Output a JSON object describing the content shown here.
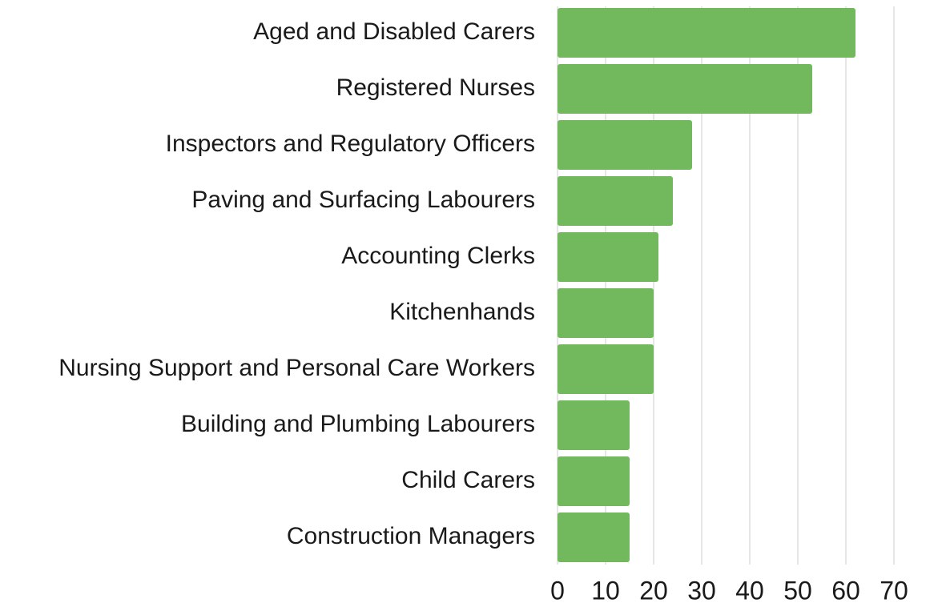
{
  "chart_data": {
    "type": "barh",
    "categories": [
      "Aged and Disabled Carers",
      "Registered Nurses",
      "Inspectors and Regulatory Officers",
      "Paving and Surfacing Labourers",
      "Accounting Clerks",
      "Kitchenhands",
      "Nursing Support and Personal Care Workers",
      "Building and Plumbing Labourers",
      "Child Carers",
      "Construction Managers"
    ],
    "values": [
      62,
      53,
      28,
      24,
      21,
      20,
      20,
      15,
      15,
      15
    ],
    "color": "#71b95c",
    "xlim": [
      0,
      70
    ],
    "xticks": [
      0,
      10,
      20,
      30,
      40,
      50,
      60,
      70
    ],
    "grid": true
  }
}
